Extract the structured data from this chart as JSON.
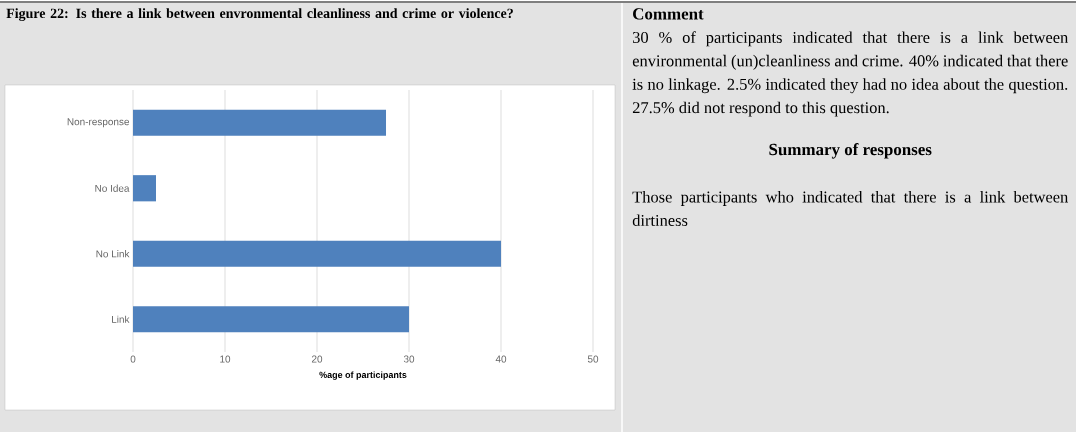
{
  "chart_data": [
    {
      "type": "bar",
      "title": "Figure 22: Is there a link between envronmental cleanliness and crime or violence?",
      "xlabel": "%age of participants",
      "orientation": "horizontal",
      "categories": [
        "Non-response",
        "No Idea",
        "No Link",
        "Link"
      ],
      "values": [
        27.5,
        2.5,
        40,
        30
      ],
      "color": "#4f81bd",
      "xlim": [
        0,
        50
      ],
      "xticks": [
        0,
        10,
        20,
        30,
        40,
        50
      ],
      "grid": "x"
    },
    {
      "type": "other",
      "title": "Comment",
      "annotations": [
        "30 % of participants indicated that there is a link between environmental (un)cleanliness and crime. 40% indicated that there is no linkage. 2.5% indicated they had no idea about the question. 27.5% did not respond to this question.",
        "Summary of responses",
        "Those participants who indicated that there is a link between dirtiness"
      ]
    }
  ]
}
